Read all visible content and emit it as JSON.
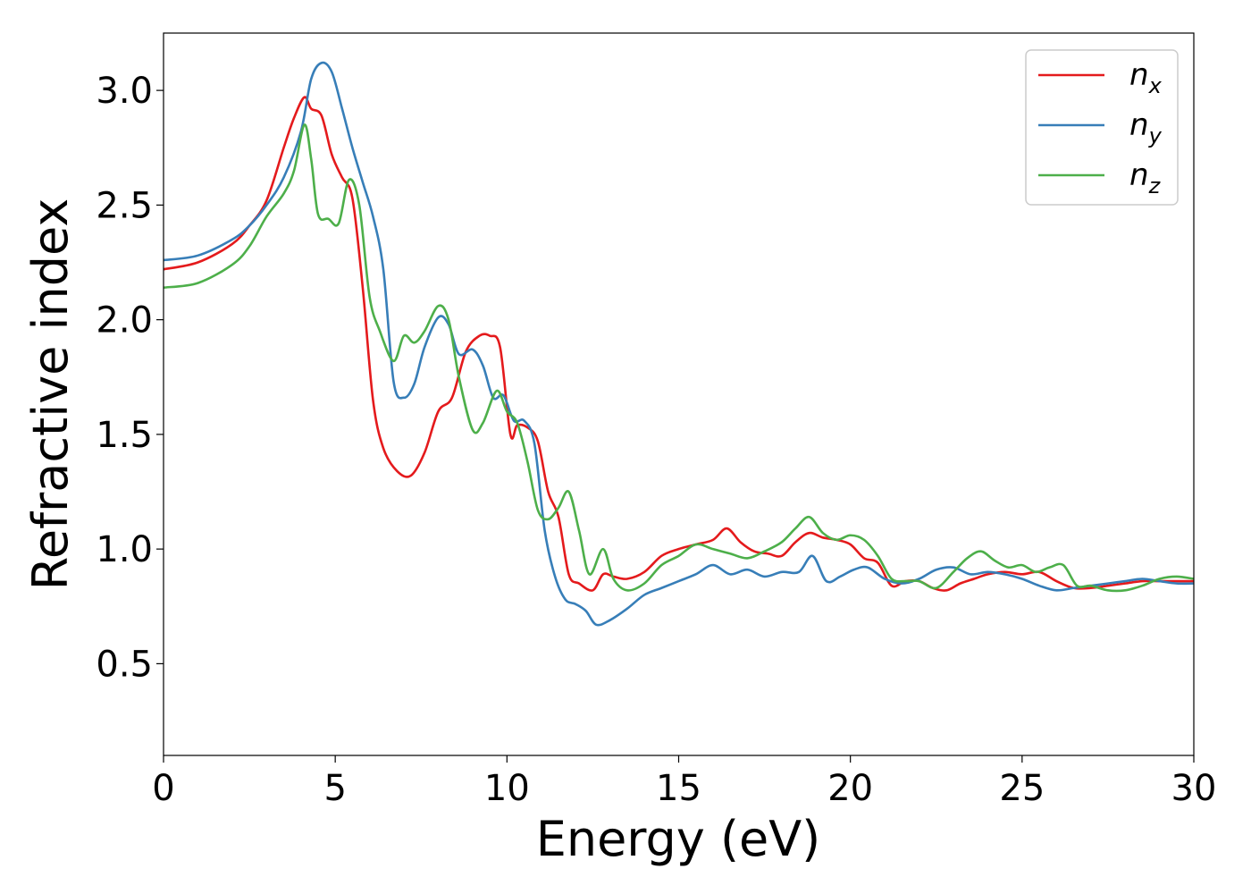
{
  "chart_data": {
    "type": "line",
    "xlabel": "Energy (eV)",
    "ylabel": "Refractive index",
    "xlim": [
      0,
      30
    ],
    "ylim": [
      0.1,
      3.25
    ],
    "xticks": [
      0,
      5,
      10,
      15,
      20,
      25,
      30
    ],
    "xtick_labels": [
      "0",
      "5",
      "10",
      "15",
      "20",
      "25",
      "30"
    ],
    "yticks": [
      0.5,
      1.0,
      1.5,
      2.0,
      2.5,
      3.0
    ],
    "ytick_labels": [
      "0.5",
      "1.0",
      "1.5",
      "2.0",
      "2.5",
      "3.0"
    ],
    "grid": false,
    "legend_position": "top-right",
    "series": [
      {
        "name": "n_x",
        "label_main": "n",
        "label_sub": "x",
        "color": "#e41a1c",
        "x": [
          0,
          1,
          2,
          2.5,
          3,
          3.5,
          3.8,
          4.1,
          4.3,
          4.6,
          4.9,
          5.2,
          5.5,
          5.8,
          6.1,
          6.4,
          6.8,
          7.2,
          7.6,
          8,
          8.4,
          8.8,
          9.2,
          9.5,
          9.8,
          10.1,
          10.3,
          10.6,
          10.9,
          11.2,
          11.5,
          11.8,
          12.1,
          12.5,
          12.8,
          13.1,
          13.5,
          14,
          14.5,
          15,
          15.5,
          16,
          16.4,
          16.8,
          17.2,
          17.6,
          18,
          18.4,
          18.8,
          19.2,
          19.6,
          20,
          20.4,
          20.8,
          21.2,
          21.6,
          22,
          22.4,
          22.8,
          23.2,
          23.6,
          24,
          24.5,
          25,
          25.5,
          26,
          26.5,
          27,
          27.5,
          28,
          28.5,
          29,
          29.5,
          30
        ],
        "y": [
          2.22,
          2.25,
          2.33,
          2.41,
          2.52,
          2.75,
          2.88,
          2.97,
          2.92,
          2.89,
          2.72,
          2.62,
          2.53,
          2.14,
          1.65,
          1.44,
          1.34,
          1.32,
          1.42,
          1.6,
          1.66,
          1.86,
          1.93,
          1.93,
          1.88,
          1.5,
          1.54,
          1.53,
          1.47,
          1.25,
          1.14,
          0.89,
          0.85,
          0.82,
          0.89,
          0.88,
          0.87,
          0.9,
          0.97,
          1.0,
          1.02,
          1.04,
          1.09,
          1.03,
          0.99,
          0.98,
          0.97,
          1.03,
          1.07,
          1.05,
          1.04,
          1.02,
          0.96,
          0.94,
          0.84,
          0.86,
          0.86,
          0.83,
          0.82,
          0.85,
          0.87,
          0.89,
          0.9,
          0.89,
          0.9,
          0.86,
          0.83,
          0.83,
          0.84,
          0.85,
          0.86,
          0.86,
          0.86,
          0.86
        ]
      },
      {
        "name": "n_y",
        "label_main": "n",
        "label_sub": "y",
        "color": "#377eb8",
        "x": [
          0,
          1,
          2,
          2.5,
          3,
          3.5,
          4,
          4.3,
          4.6,
          4.9,
          5.2,
          5.5,
          5.8,
          6.1,
          6.4,
          6.7,
          7,
          7.3,
          7.6,
          8,
          8.3,
          8.6,
          9,
          9.3,
          9.6,
          9.9,
          10.2,
          10.5,
          10.8,
          11.1,
          11.4,
          11.7,
          12,
          12.3,
          12.6,
          13,
          13.5,
          14,
          14.5,
          15,
          15.5,
          16,
          16.5,
          17,
          17.5,
          18,
          18.5,
          18.9,
          19.3,
          19.7,
          20.1,
          20.5,
          21,
          21.5,
          22,
          22.5,
          23,
          23.5,
          24,
          24.5,
          25,
          25.5,
          26,
          26.5,
          27,
          27.5,
          28,
          28.5,
          29,
          29.5,
          30
        ],
        "y": [
          2.26,
          2.28,
          2.35,
          2.41,
          2.5,
          2.62,
          2.82,
          3.05,
          3.12,
          3.08,
          2.92,
          2.75,
          2.6,
          2.45,
          2.22,
          1.73,
          1.66,
          1.72,
          1.88,
          2.01,
          1.98,
          1.85,
          1.87,
          1.8,
          1.66,
          1.67,
          1.56,
          1.56,
          1.46,
          1.08,
          0.88,
          0.78,
          0.76,
          0.73,
          0.67,
          0.69,
          0.74,
          0.8,
          0.83,
          0.86,
          0.89,
          0.93,
          0.89,
          0.91,
          0.88,
          0.9,
          0.9,
          0.97,
          0.86,
          0.88,
          0.91,
          0.92,
          0.87,
          0.85,
          0.87,
          0.91,
          0.92,
          0.89,
          0.9,
          0.89,
          0.87,
          0.84,
          0.82,
          0.83,
          0.84,
          0.85,
          0.86,
          0.87,
          0.86,
          0.85,
          0.85
        ]
      },
      {
        "name": "n_z",
        "label_main": "n",
        "label_sub": "z",
        "color": "#4daf4a",
        "x": [
          0,
          1,
          2,
          2.5,
          3,
          3.5,
          3.8,
          4.1,
          4.3,
          4.5,
          4.8,
          5.1,
          5.4,
          5.7,
          6,
          6.3,
          6.7,
          7,
          7.3,
          7.6,
          8,
          8.3,
          8.6,
          9,
          9.3,
          9.7,
          10,
          10.3,
          10.6,
          10.9,
          11.2,
          11.5,
          11.8,
          12.1,
          12.4,
          12.8,
          13.1,
          13.5,
          14,
          14.5,
          15,
          15.5,
          16,
          16.5,
          17,
          17.5,
          18,
          18.4,
          18.8,
          19.2,
          19.6,
          20,
          20.4,
          20.8,
          21.2,
          21.6,
          22,
          22.5,
          23,
          23.4,
          23.8,
          24.2,
          24.6,
          25,
          25.4,
          25.8,
          26.2,
          26.6,
          27,
          27.5,
          28,
          28.5,
          29,
          29.5,
          30
        ],
        "y": [
          2.14,
          2.16,
          2.24,
          2.32,
          2.45,
          2.55,
          2.65,
          2.85,
          2.7,
          2.46,
          2.44,
          2.42,
          2.61,
          2.5,
          2.1,
          1.95,
          1.82,
          1.93,
          1.9,
          1.95,
          2.06,
          2.0,
          1.75,
          1.52,
          1.55,
          1.69,
          1.6,
          1.55,
          1.38,
          1.17,
          1.13,
          1.18,
          1.25,
          1.08,
          0.89,
          1.0,
          0.87,
          0.82,
          0.85,
          0.93,
          0.97,
          1.02,
          1.0,
          0.98,
          0.96,
          0.99,
          1.03,
          1.09,
          1.14,
          1.07,
          1.04,
          1.06,
          1.04,
          0.97,
          0.87,
          0.86,
          0.86,
          0.83,
          0.9,
          0.96,
          0.99,
          0.95,
          0.92,
          0.93,
          0.9,
          0.92,
          0.93,
          0.84,
          0.84,
          0.82,
          0.82,
          0.84,
          0.87,
          0.88,
          0.87
        ]
      }
    ]
  }
}
